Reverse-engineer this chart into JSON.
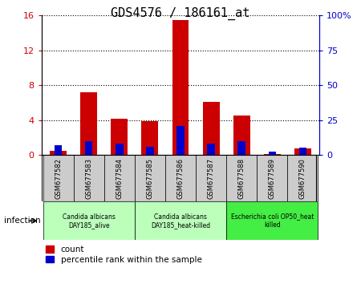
{
  "title": "GDS4576 / 186161_at",
  "samples": [
    "GSM677582",
    "GSM677583",
    "GSM677584",
    "GSM677585",
    "GSM677586",
    "GSM677587",
    "GSM677588",
    "GSM677589",
    "GSM677590"
  ],
  "count_values": [
    0.5,
    7.2,
    4.1,
    3.9,
    15.5,
    6.1,
    4.5,
    0.05,
    0.7
  ],
  "percentile_values": [
    7,
    10,
    8,
    6,
    21,
    8,
    10,
    2,
    5
  ],
  "left_ylim": [
    0,
    16
  ],
  "right_ylim": [
    0,
    100
  ],
  "left_yticks": [
    0,
    4,
    8,
    12,
    16
  ],
  "right_yticks": [
    0,
    25,
    50,
    75,
    100
  ],
  "right_yticklabels": [
    "0",
    "25",
    "50",
    "75",
    "100%"
  ],
  "bar_width": 0.55,
  "count_color": "#cc0000",
  "percentile_color": "#0000cc",
  "group1_color": "#bbffbb",
  "group2_color": "#44ee44",
  "tick_bg_color": "#cccccc",
  "infection_label": "infection",
  "legend_count_label": "count",
  "legend_percentile_label": "percentile rank within the sample",
  "title_fontsize": 11,
  "groups": [
    {
      "label": "Candida albicans\nDAY185_alive",
      "start": 0,
      "end": 2,
      "color": "#bbffbb"
    },
    {
      "label": "Candida albicans\nDAY185_heat-killed",
      "start": 3,
      "end": 5,
      "color": "#bbffbb"
    },
    {
      "label": "Escherichia coli OP50_heat\nkilled",
      "start": 6,
      "end": 8,
      "color": "#44ee44"
    }
  ]
}
